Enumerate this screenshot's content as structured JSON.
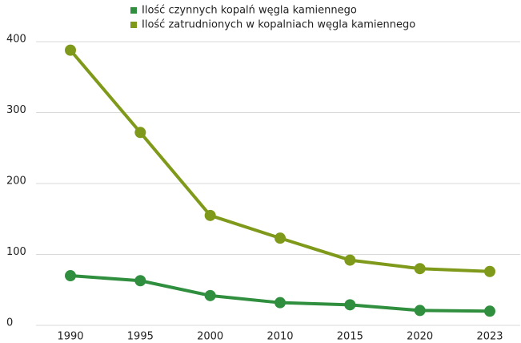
{
  "chart_data": {
    "type": "line",
    "categories": [
      "1990",
      "1995",
      "2000",
      "2010",
      "2015",
      "2020",
      "2023"
    ],
    "series": [
      {
        "name": "Ilość czynnych kopalń węgla kamiennego",
        "color": "#2f8f3e",
        "values": [
          70,
          63,
          42,
          32,
          29,
          21,
          20
        ]
      },
      {
        "name": "Ilość zatrudnionych w kopalniach węgla kamiennego",
        "color": "#7f9a1b",
        "values": [
          388,
          272,
          155,
          123,
          92,
          80,
          76
        ]
      }
    ],
    "ylim": [
      0,
      400
    ],
    "yticks": [
      0,
      100,
      200,
      300,
      400
    ],
    "grid": true,
    "legend": "top"
  }
}
